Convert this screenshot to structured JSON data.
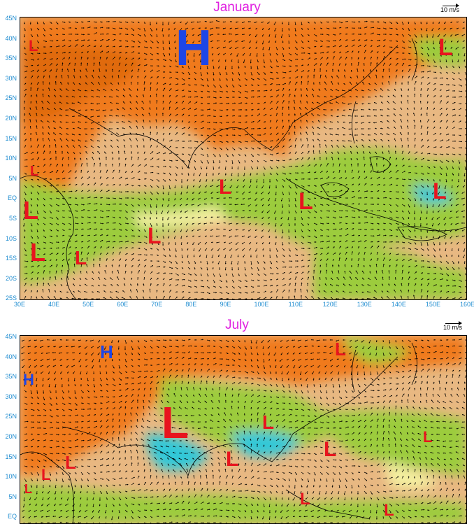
{
  "panels": [
    {
      "title": "January",
      "scale_label": "10 m/s",
      "lat_labels": [
        "45N",
        "40N",
        "35N",
        "30N",
        "25N",
        "20N",
        "15N",
        "10N",
        "5N",
        "EQ",
        "5S",
        "10S",
        "15S",
        "20S",
        "25S"
      ],
      "lon_labels": [
        "30E",
        "40E",
        "50E",
        "60E",
        "70E",
        "80E",
        "90E",
        "100E",
        "110E",
        "120E",
        "130E",
        "140E",
        "150E",
        "160E"
      ],
      "pressure_centers": [
        {
          "label": "H",
          "kind": "high"
        },
        {
          "label": "L",
          "kind": "low"
        },
        {
          "label": "L",
          "kind": "low"
        },
        {
          "label": "L",
          "kind": "low"
        },
        {
          "label": "L",
          "kind": "low"
        },
        {
          "label": "L",
          "kind": "low"
        },
        {
          "label": "L",
          "kind": "low"
        },
        {
          "label": "L",
          "kind": "low"
        },
        {
          "label": "L",
          "kind": "low"
        },
        {
          "label": "L",
          "kind": "low"
        },
        {
          "label": "L",
          "kind": "low"
        }
      ]
    },
    {
      "title": "July",
      "scale_label": "10 m/s",
      "lat_labels": [
        "45N",
        "40N",
        "35N",
        "30N",
        "25N",
        "20N",
        "15N",
        "10N",
        "5N",
        "EQ"
      ],
      "pressure_centers": [
        {
          "label": "H",
          "kind": "high"
        },
        {
          "label": "H",
          "kind": "high"
        },
        {
          "label": "L",
          "kind": "low"
        },
        {
          "label": "L",
          "kind": "low"
        },
        {
          "label": "L",
          "kind": "low"
        },
        {
          "label": "L",
          "kind": "low"
        },
        {
          "label": "L",
          "kind": "low"
        },
        {
          "label": "L",
          "kind": "low"
        },
        {
          "label": "L",
          "kind": "low"
        },
        {
          "label": "L",
          "kind": "low"
        },
        {
          "label": "L",
          "kind": "low"
        },
        {
          "label": "L",
          "kind": "low"
        },
        {
          "label": "L",
          "kind": "low"
        }
      ]
    }
  ],
  "colors": {
    "land_orange": "#f07a1a",
    "ocean_tan": "#e8b882",
    "green": "#9ccc3c",
    "pale_yellow": "#f4f0a0",
    "cyan": "#30c8d8",
    "low_red": "#e8141e",
    "high_blue": "#1e46e6",
    "title_magenta": "#e020e0",
    "tick_blue": "#1e8cd0"
  }
}
